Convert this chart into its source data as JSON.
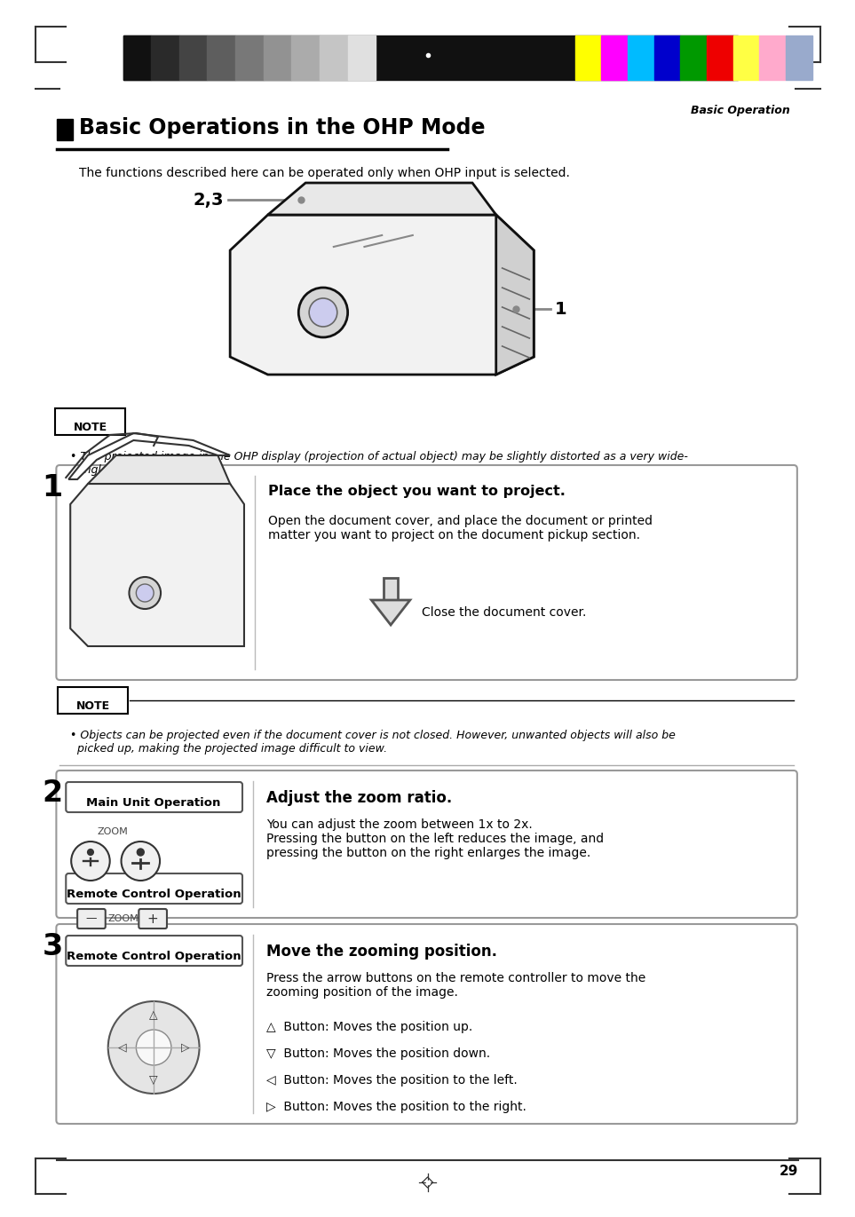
{
  "page_bg": "#ffffff",
  "header_bar_color": "#111111",
  "header_italic_text": "Basic Operation",
  "title_text": "Basic Operations in the OHP Mode",
  "subtitle": "The functions described here can be operated only when OHP input is selected.",
  "note1_text": "• The projected image in the OHP display (projection of actual object) may be slightly distorted as a very wide-\n  angle lens is used.",
  "step1_number": "1",
  "step1_title": "Place the object you want to project.",
  "step1_body": "Open the document cover, and place the document or printed\nmatter you want to project on the document pickup section.",
  "step1_arrow_label": "Close the document cover.",
  "note2_text": "• Objects can be projected even if the document cover is not closed. However, unwanted objects will also be\n  picked up, making the projected image difficult to view.",
  "step2_number": "2",
  "step2_box1": "Main Unit Operation",
  "step2_zoom": "ZOOM",
  "step2_box2": "Remote Control Operation",
  "step2_title": "Adjust the zoom ratio.",
  "step2_body": "You can adjust the zoom between 1x to 2x.\nPressing the button on the left reduces the image, and\npressing the button on the right enlarges the image.",
  "step3_number": "3",
  "step3_box": "Remote Control Operation",
  "step3_title": "Move the zooming position.",
  "step3_body": "Press the arrow buttons on the remote controller to move the\nzooming position of the image.",
  "step3_bullets": [
    "△  Button: Moves the position up.",
    "▽  Button: Moves the position down.",
    "◁  Button: Moves the position to the left.",
    "▷  Button: Moves the position to the right."
  ],
  "page_number": "29",
  "color_bar_colors": [
    "#ffff00",
    "#ff00ff",
    "#00bbff",
    "#0000cc",
    "#009900",
    "#ee0000",
    "#ffff44",
    "#ffaacc",
    "#99aacc"
  ],
  "gray_bar_colors": [
    "#111111",
    "#2a2a2a",
    "#444444",
    "#5e5e5e",
    "#787878",
    "#929292",
    "#ababab",
    "#c5c5c5",
    "#e0e0e0"
  ]
}
